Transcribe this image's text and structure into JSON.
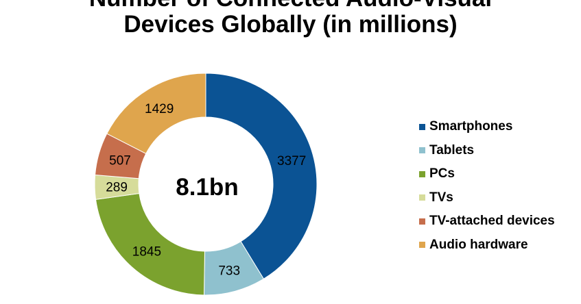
{
  "title": {
    "line1": "Number of Connected Audio-Visual",
    "line2": "Devices Globally (in millions)"
  },
  "chart_data": {
    "type": "pie",
    "title": "Number of Connected Audio-Visual Devices Globally (in millions)",
    "center_label": "8.1bn",
    "categories": [
      "Smartphones",
      "Tablets",
      "PCs",
      "TVs",
      "TV-attached devices",
      "Audio hardware"
    ],
    "values": [
      3377,
      733,
      1845,
      289,
      507,
      1429
    ],
    "colors": [
      "#0b5394",
      "#8fc1ce",
      "#7ba22e",
      "#d6dc9a",
      "#c66e4c",
      "#dfa54d"
    ],
    "legend_position": "right",
    "style": "donut"
  }
}
